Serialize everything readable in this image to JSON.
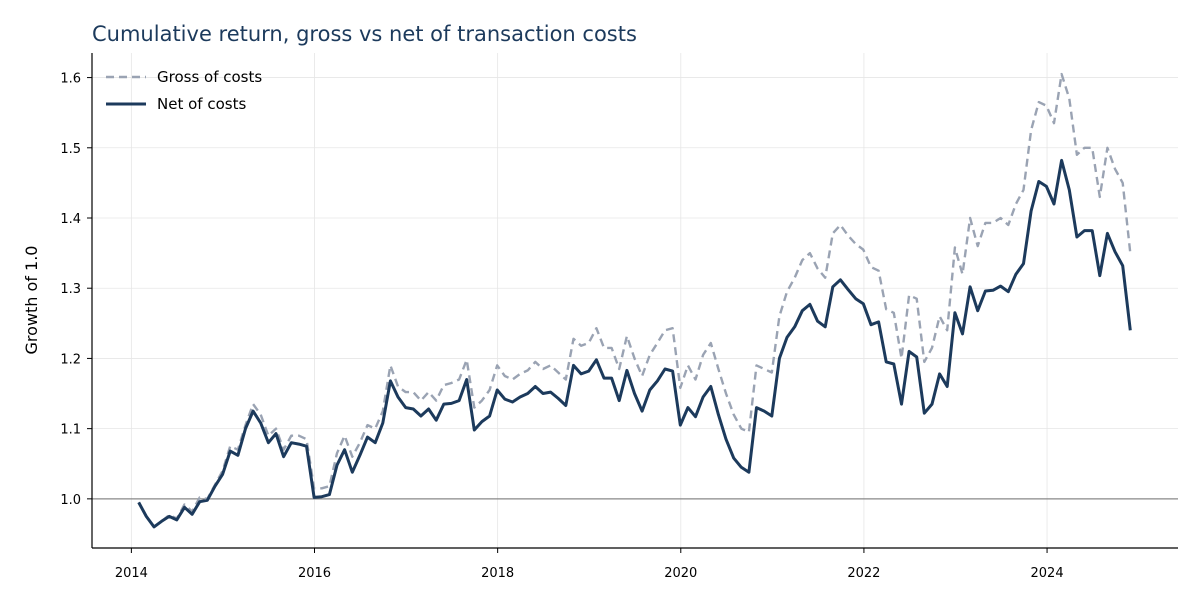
{
  "chart_data": {
    "type": "line",
    "title": "Cumulative return, gross vs net of transaction costs",
    "xlabel": "",
    "ylabel": "Growth of 1.0",
    "xlim": [
      2013.57,
      2025.43
    ],
    "ylim": [
      0.93,
      1.635
    ],
    "xticks": [
      2014,
      2016,
      2018,
      2020,
      2022,
      2024
    ],
    "yticks": [
      1.0,
      1.1,
      1.2,
      1.3,
      1.4,
      1.5,
      1.6
    ],
    "grid": true,
    "reference_line": 1.0,
    "legend": "top-left",
    "colors": {
      "gross": "#9aa3b3",
      "net": "#1c3a5c",
      "title": "#1c3a5c",
      "reference": "#888888"
    },
    "x_start": 2014.08,
    "x_step": 0.0833,
    "series": [
      {
        "name": "Gross of costs",
        "style": "dashed",
        "values": [
          0.995,
          0.975,
          0.96,
          0.968,
          0.977,
          0.972,
          0.992,
          0.982,
          1.002,
          1.0,
          1.02,
          1.04,
          1.075,
          1.07,
          1.105,
          1.135,
          1.12,
          1.09,
          1.1,
          1.07,
          1.09,
          1.09,
          1.085,
          1.015,
          1.015,
          1.018,
          1.065,
          1.09,
          1.06,
          1.08,
          1.105,
          1.1,
          1.125,
          1.19,
          1.16,
          1.152,
          1.152,
          1.14,
          1.152,
          1.14,
          1.162,
          1.165,
          1.17,
          1.198,
          1.13,
          1.14,
          1.155,
          1.19,
          1.175,
          1.17,
          1.178,
          1.183,
          1.195,
          1.185,
          1.19,
          1.18,
          1.17,
          1.228,
          1.218,
          1.222,
          1.243,
          1.215,
          1.215,
          1.185,
          1.232,
          1.2,
          1.175,
          1.205,
          1.222,
          1.24,
          1.243,
          1.158,
          1.19,
          1.17,
          1.205,
          1.222,
          1.185,
          1.15,
          1.12,
          1.1,
          1.095,
          1.19,
          1.185,
          1.18,
          1.26,
          1.295,
          1.315,
          1.34,
          1.35,
          1.328,
          1.315,
          1.378,
          1.39,
          1.375,
          1.363,
          1.355,
          1.33,
          1.325,
          1.27,
          1.265,
          1.2,
          1.29,
          1.285,
          1.195,
          1.215,
          1.26,
          1.24,
          1.358,
          1.32,
          1.4,
          1.36,
          1.393,
          1.393,
          1.4,
          1.39,
          1.42,
          1.44,
          1.525,
          1.565,
          1.56,
          1.535,
          1.605,
          1.57,
          1.49,
          1.5,
          1.5,
          1.43,
          1.5,
          1.47,
          1.45,
          1.35
        ]
      },
      {
        "name": "Net of costs",
        "style": "solid",
        "values": [
          0.995,
          0.975,
          0.96,
          0.968,
          0.975,
          0.97,
          0.988,
          0.978,
          0.996,
          0.998,
          1.018,
          1.035,
          1.068,
          1.062,
          1.1,
          1.125,
          1.108,
          1.08,
          1.093,
          1.06,
          1.08,
          1.078,
          1.075,
          1.002,
          1.003,
          1.006,
          1.048,
          1.07,
          1.038,
          1.062,
          1.088,
          1.08,
          1.108,
          1.168,
          1.145,
          1.13,
          1.128,
          1.118,
          1.128,
          1.112,
          1.135,
          1.136,
          1.14,
          1.17,
          1.098,
          1.11,
          1.118,
          1.155,
          1.142,
          1.138,
          1.145,
          1.15,
          1.16,
          1.15,
          1.152,
          1.143,
          1.133,
          1.19,
          1.178,
          1.182,
          1.198,
          1.172,
          1.172,
          1.14,
          1.183,
          1.15,
          1.125,
          1.155,
          1.168,
          1.185,
          1.182,
          1.105,
          1.13,
          1.117,
          1.145,
          1.16,
          1.12,
          1.085,
          1.058,
          1.045,
          1.038,
          1.13,
          1.125,
          1.118,
          1.2,
          1.23,
          1.245,
          1.268,
          1.277,
          1.253,
          1.245,
          1.302,
          1.312,
          1.298,
          1.285,
          1.278,
          1.248,
          1.252,
          1.195,
          1.192,
          1.135,
          1.21,
          1.202,
          1.122,
          1.135,
          1.178,
          1.16,
          1.265,
          1.235,
          1.302,
          1.268,
          1.296,
          1.297,
          1.303,
          1.295,
          1.32,
          1.335,
          1.41,
          1.452,
          1.445,
          1.42,
          1.482,
          1.44,
          1.373,
          1.382,
          1.382,
          1.318,
          1.378,
          1.352,
          1.332,
          1.24
        ]
      }
    ]
  }
}
